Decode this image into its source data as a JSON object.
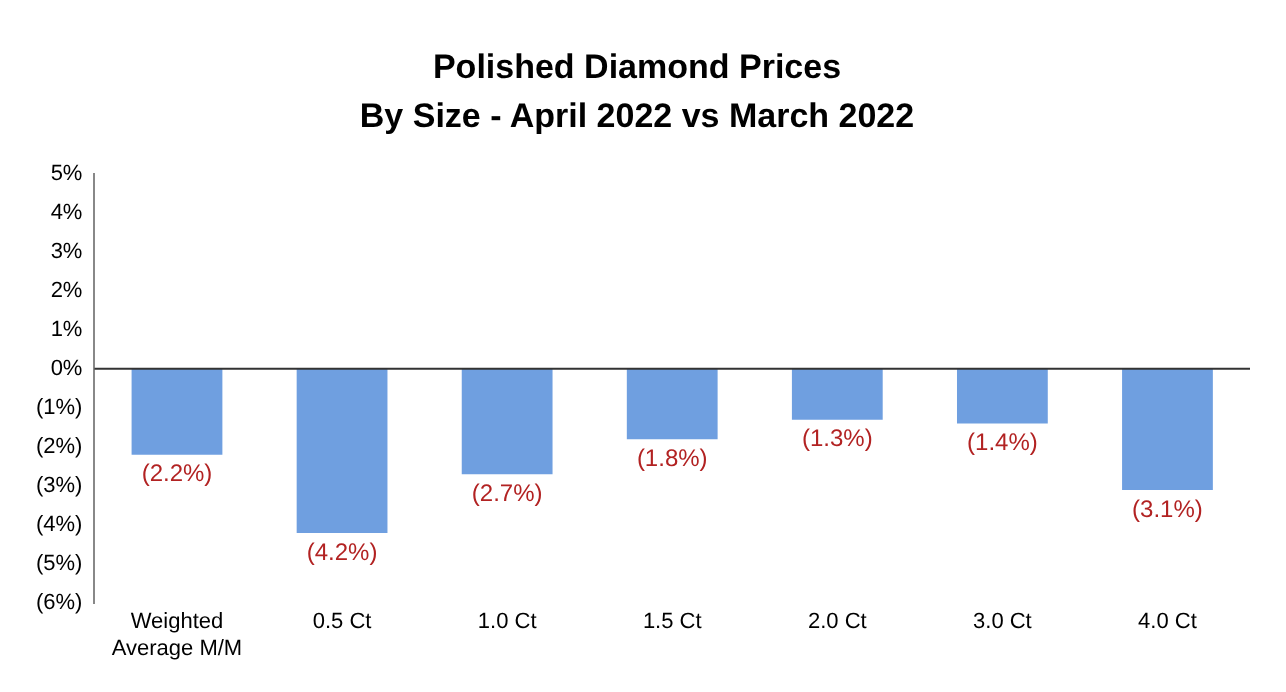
{
  "chart_data": {
    "type": "bar",
    "title": "Polished Diamond Prices",
    "subtitle": "By Size - April 2022 vs March 2022",
    "categories": [
      "Weighted Average M/M",
      "0.5 Ct",
      "1.0 Ct",
      "1.5 Ct",
      "2.0 Ct",
      "3.0 Ct",
      "4.0 Ct"
    ],
    "values": [
      -2.2,
      -4.2,
      -2.7,
      -1.8,
      -1.3,
      -1.4,
      -3.1
    ],
    "value_labels": [
      "(2.2%)",
      "(4.2%)",
      "(2.7%)",
      "(1.8%)",
      "(1.3%)",
      "(1.4%)",
      "(3.1%)"
    ],
    "color": "#6f9fe0",
    "ylim": [
      -6,
      5
    ],
    "yticks": [
      {
        "value": 5,
        "label": "5%"
      },
      {
        "value": 4,
        "label": "4%"
      },
      {
        "value": 3,
        "label": "3%"
      },
      {
        "value": 2,
        "label": "2%"
      },
      {
        "value": 1,
        "label": "1%"
      },
      {
        "value": 0,
        "label": "0%"
      },
      {
        "value": -1,
        "label": "(1%)"
      },
      {
        "value": -2,
        "label": "(2%)"
      },
      {
        "value": -3,
        "label": "(3%)"
      },
      {
        "value": -4,
        "label": "(4%)"
      },
      {
        "value": -5,
        "label": "(5%)"
      },
      {
        "value": -6,
        "label": "(6%)"
      }
    ],
    "ref_lines": [
      {
        "axis": "y",
        "value": 0,
        "color": "#333333"
      }
    ],
    "grid": false,
    "legend": false
  }
}
